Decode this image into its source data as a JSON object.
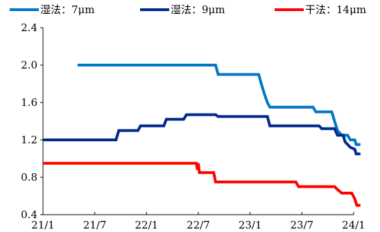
{
  "chart_data": {
    "type": "line",
    "title": "",
    "xlabel": "",
    "ylabel": "",
    "xlim": [
      "2021-01",
      "2024-01"
    ],
    "ylim": [
      0.4,
      2.4
    ],
    "x_ticks": [
      "21/1",
      "21/7",
      "22/1",
      "22/7",
      "23/1",
      "23/7",
      "24/1"
    ],
    "y_ticks": [
      "2.4",
      "2.0",
      "1.6",
      "1.2",
      "0.8",
      "0.4"
    ],
    "grid": false,
    "legend_position": "top",
    "series": [
      {
        "name": "湿法：7μm",
        "color": "#0077C8",
        "points": [
          [
            "2021-05-01",
            2.0
          ],
          [
            "2022-09-01",
            2.0
          ],
          [
            "2022-09-10",
            1.9
          ],
          [
            "2023-02-01",
            1.9
          ],
          [
            "2023-02-10",
            1.8
          ],
          [
            "2023-02-20",
            1.7
          ],
          [
            "2023-03-01",
            1.6
          ],
          [
            "2023-03-10",
            1.55
          ],
          [
            "2023-08-10",
            1.55
          ],
          [
            "2023-08-20",
            1.5
          ],
          [
            "2023-10-15",
            1.5
          ],
          [
            "2023-10-25",
            1.4
          ],
          [
            "2023-11-05",
            1.3
          ],
          [
            "2023-11-20",
            1.25
          ],
          [
            "2023-12-10",
            1.25
          ],
          [
            "2023-12-20",
            1.2
          ],
          [
            "2024-01-05",
            1.2
          ],
          [
            "2024-01-10",
            1.15
          ],
          [
            "2024-01-25",
            1.15
          ]
        ]
      },
      {
        "name": "湿法：9μm",
        "color": "#002B8C",
        "points": [
          [
            "2021-01-01",
            1.2
          ],
          [
            "2021-09-15",
            1.2
          ],
          [
            "2021-09-25",
            1.3
          ],
          [
            "2021-12-01",
            1.3
          ],
          [
            "2021-12-10",
            1.35
          ],
          [
            "2022-03-01",
            1.35
          ],
          [
            "2022-03-10",
            1.42
          ],
          [
            "2022-05-10",
            1.42
          ],
          [
            "2022-05-20",
            1.47
          ],
          [
            "2022-09-01",
            1.47
          ],
          [
            "2022-09-10",
            1.45
          ],
          [
            "2023-03-01",
            1.45
          ],
          [
            "2023-03-10",
            1.35
          ],
          [
            "2023-09-01",
            1.35
          ],
          [
            "2023-09-10",
            1.32
          ],
          [
            "2023-10-25",
            1.32
          ],
          [
            "2023-11-05",
            1.25
          ],
          [
            "2023-11-25",
            1.25
          ],
          [
            "2023-12-01",
            1.18
          ],
          [
            "2023-12-20",
            1.12
          ],
          [
            "2024-01-05",
            1.1
          ],
          [
            "2024-01-10",
            1.05
          ],
          [
            "2024-01-25",
            1.05
          ]
        ]
      },
      {
        "name": "干法：14μm",
        "color": "#FF0000",
        "points": [
          [
            "2021-01-01",
            0.95
          ],
          [
            "2022-06-25",
            0.95
          ],
          [
            "2022-06-28",
            0.88
          ],
          [
            "2022-07-01",
            0.95
          ],
          [
            "2022-07-05",
            0.85
          ],
          [
            "2022-08-25",
            0.85
          ],
          [
            "2022-09-01",
            0.75
          ],
          [
            "2023-06-10",
            0.75
          ],
          [
            "2023-06-20",
            0.7
          ],
          [
            "2023-10-25",
            0.7
          ],
          [
            "2023-11-05",
            0.67
          ],
          [
            "2023-11-20",
            0.63
          ],
          [
            "2023-12-25",
            0.63
          ],
          [
            "2024-01-05",
            0.57
          ],
          [
            "2024-01-12",
            0.5
          ],
          [
            "2024-01-25",
            0.5
          ]
        ]
      }
    ]
  }
}
